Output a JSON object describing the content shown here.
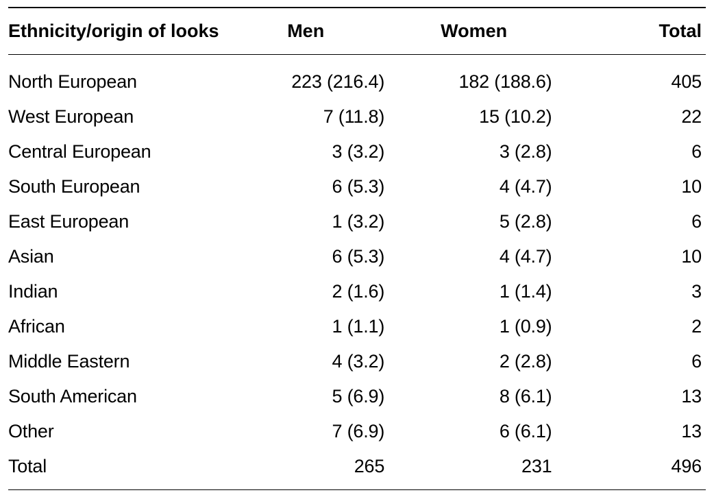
{
  "table": {
    "type": "table",
    "background_color": "#ffffff",
    "text_color": "#000000",
    "border_color": "#000000",
    "header_fontsize": 27,
    "body_fontsize": 27,
    "header_fontweight": 700,
    "body_fontweight": 400,
    "columns": [
      {
        "key": "label",
        "header": "Ethnicity/origin of looks",
        "align": "left",
        "width_pct": 40
      },
      {
        "key": "men",
        "header": "Men",
        "align": "right",
        "width_pct": 22
      },
      {
        "key": "women",
        "header": "Women",
        "align": "right",
        "width_pct": 24
      },
      {
        "key": "total",
        "header": "Total",
        "align": "right",
        "width_pct": 14
      }
    ],
    "rows": [
      {
        "label": "North European",
        "men": "223 (216.4)",
        "women": "182 (188.6)",
        "total": "405"
      },
      {
        "label": "West European",
        "men": "7 (11.8)",
        "women": "15 (10.2)",
        "total": "22"
      },
      {
        "label": "Central European",
        "men": "3 (3.2)",
        "women": "3 (2.8)",
        "total": "6"
      },
      {
        "label": "South European",
        "men": "6 (5.3)",
        "women": "4 (4.7)",
        "total": "10"
      },
      {
        "label": "East European",
        "men": "1 (3.2)",
        "women": "5 (2.8)",
        "total": "6"
      },
      {
        "label": "Asian",
        "men": "6 (5.3)",
        "women": "4 (4.7)",
        "total": "10"
      },
      {
        "label": "Indian",
        "men": "2 (1.6)",
        "women": "1 (1.4)",
        "total": "3"
      },
      {
        "label": "African",
        "men": "1 (1.1)",
        "women": "1 (0.9)",
        "total": "2"
      },
      {
        "label": "Middle Eastern",
        "men": "4 (3.2)",
        "women": "2 (2.8)",
        "total": "6"
      },
      {
        "label": "South American",
        "men": "5 (6.9)",
        "women": "8 (6.1)",
        "total": "13"
      },
      {
        "label": "Other",
        "men": "7 (6.9)",
        "women": "6 (6.1)",
        "total": "13"
      },
      {
        "label": "Total",
        "men": "265",
        "women": "231",
        "total": "496"
      }
    ]
  }
}
